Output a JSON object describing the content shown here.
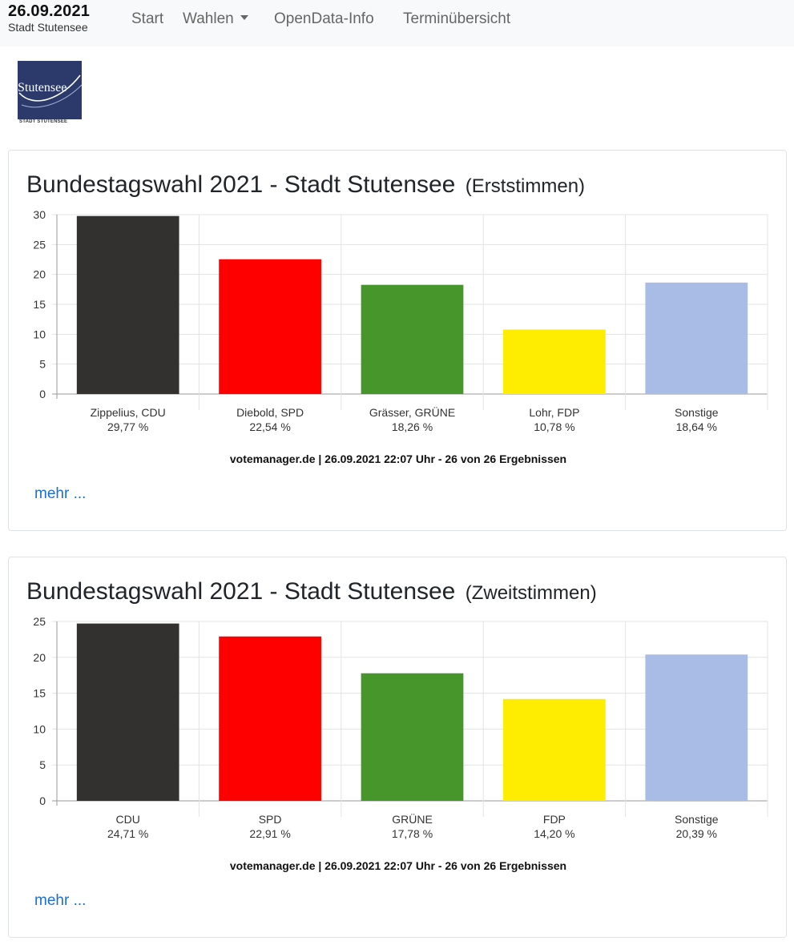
{
  "nav": {
    "date": "26.09.2021",
    "city": "Stadt Stutensee",
    "links": [
      "Start",
      "Wahlen",
      "OpenData-Info",
      "Terminübersicht"
    ]
  },
  "logo": {
    "name": "Stutensee",
    "caption": "STADT STUTENSEE"
  },
  "cards": [
    {
      "title": "Bundestagswahl 2021 - Stadt Stutensee",
      "subtitle": "(Erststimmen)",
      "source": "votemanager.de | 26.09.2021 22:07 Uhr - 26 von 26 Ergebnissen",
      "more": "mehr ..."
    },
    {
      "title": "Bundestagswahl 2021 - Stadt Stutensee",
      "subtitle": "(Zweitstimmen)",
      "source": "votemanager.de | 26.09.2021 22:07 Uhr - 26 von 26 Ergebnissen",
      "more": "mehr ..."
    }
  ],
  "chart_data": [
    {
      "type": "bar",
      "categories": [
        "Zippelius, CDU",
        "Diebold, SPD",
        "Grässer, GRÜNE",
        "Lohr, FDP",
        "Sonstige"
      ],
      "value_labels": [
        "29,77 %",
        "22,54 %",
        "18,26 %",
        "10,78 %",
        "18,64 %"
      ],
      "values": [
        29.77,
        22.54,
        18.26,
        10.78,
        18.64
      ],
      "colors": [
        "#333130",
        "#ff0000",
        "#46962b",
        "#ffed00",
        "#a8bce5"
      ],
      "ylim": [
        0,
        30
      ],
      "yticks": [
        0,
        5,
        10,
        15,
        20,
        25,
        30
      ],
      "grid": true
    },
    {
      "type": "bar",
      "categories": [
        "CDU",
        "SPD",
        "GRÜNE",
        "FDP",
        "Sonstige"
      ],
      "value_labels": [
        "24,71 %",
        "22,91 %",
        "17,78 %",
        "14,20 %",
        "20,39 %"
      ],
      "values": [
        24.71,
        22.91,
        17.78,
        14.2,
        20.39
      ],
      "colors": [
        "#333130",
        "#ff0000",
        "#46962b",
        "#ffed00",
        "#a8bce5"
      ],
      "ylim": [
        0,
        25
      ],
      "yticks": [
        0,
        5,
        10,
        15,
        20,
        25
      ],
      "grid": true
    }
  ]
}
